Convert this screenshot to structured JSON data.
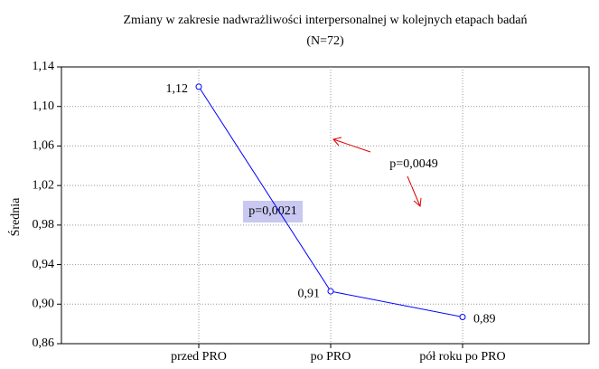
{
  "chart_data": {
    "type": "line",
    "title": "Zmiany w zakresie nadwrażliwości interpersonalnej w kolejnych etapach badań",
    "subtitle": "(N=72)",
    "ylabel": "Średnia",
    "categories": [
      "przed PRO",
      "po PRO",
      "pół roku po PRO"
    ],
    "series": [
      {
        "name": "Średnia",
        "color": "#0000ff",
        "values": [
          1.12,
          0.913,
          0.887
        ],
        "value_labels": [
          "1,12",
          "0,91",
          "0,89"
        ]
      }
    ],
    "ylim": [
      0.86,
      1.14
    ],
    "yticks": [
      {
        "value": 0.86,
        "label": "0,86"
      },
      {
        "value": 0.9,
        "label": "0,90"
      },
      {
        "value": 0.94,
        "label": "0,94"
      },
      {
        "value": 0.98,
        "label": "0,98"
      },
      {
        "value": 1.02,
        "label": "1,02"
      },
      {
        "value": 1.06,
        "label": "1,06"
      },
      {
        "value": 1.1,
        "label": "1,10"
      },
      {
        "value": 1.14,
        "label": "1,14"
      }
    ],
    "grid": true,
    "annotations": [
      {
        "text": "p=0,0021"
      },
      {
        "text": "p=0,0049"
      }
    ]
  }
}
